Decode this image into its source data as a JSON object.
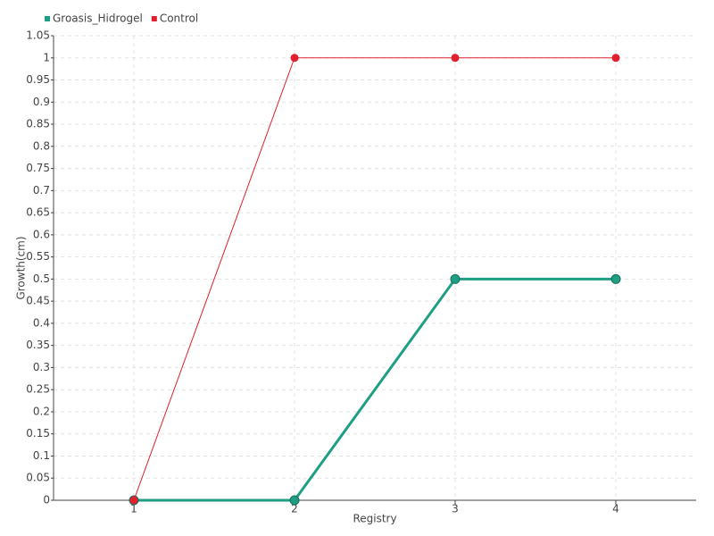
{
  "chart_data": {
    "type": "line",
    "x_label": "Registry",
    "y_label": "Growth(cm)",
    "categories": [
      "1",
      "2",
      "3",
      "4"
    ],
    "series": [
      {
        "name": "Groasis_Hidrogel",
        "color": "#1e9e83",
        "values": [
          0,
          0,
          0.5,
          0.5
        ]
      },
      {
        "name": "Control",
        "color": "#e0202e",
        "values": [
          0,
          1,
          1,
          1
        ]
      }
    ],
    "ylim": [
      0,
      1.05
    ],
    "yticks": [
      0,
      0.05,
      0.1,
      0.15,
      0.2,
      0.25,
      0.3,
      0.35,
      0.4,
      0.45,
      0.5,
      0.55,
      0.6,
      0.65,
      0.7,
      0.75,
      0.8,
      0.85,
      0.9,
      0.95,
      1,
      1.05
    ],
    "grid": true
  }
}
